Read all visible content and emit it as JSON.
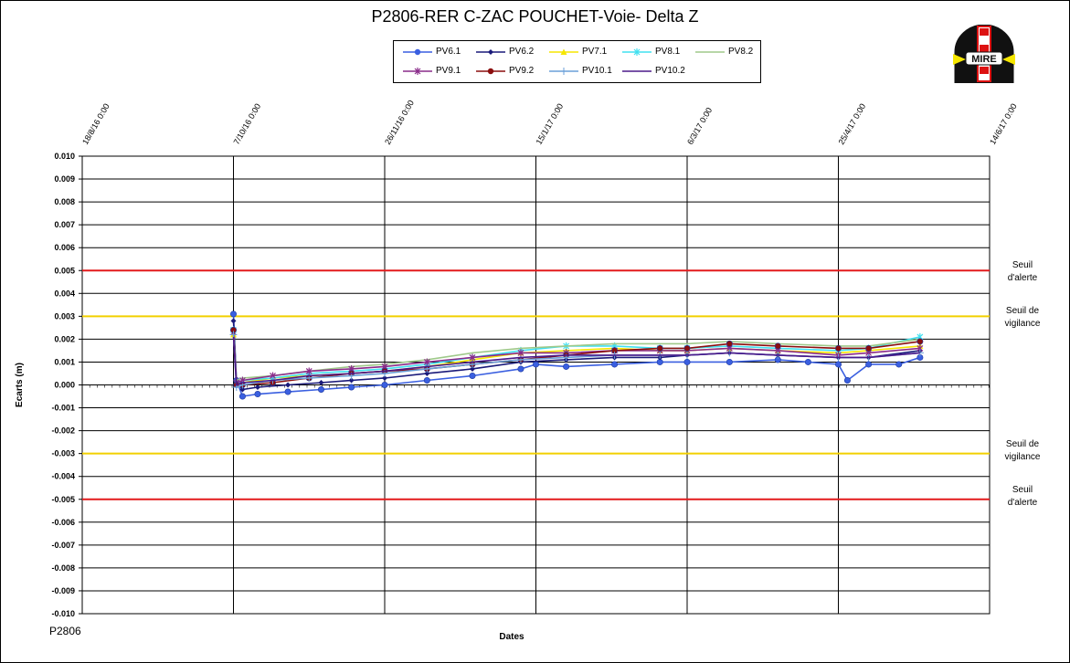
{
  "page": {
    "title": "P2806-RER  C-ZAC  POUCHET-Voie-  Delta Z",
    "footer_code": "P2806",
    "logo_text": "MIRE"
  },
  "thresholds": [
    {
      "value": 0.005,
      "color": "#e31a1c",
      "label_line1": "Seuil",
      "label_line2": "d'alerte"
    },
    {
      "value": 0.003,
      "color": "#f2d000",
      "label_line1": "Seuil de",
      "label_line2": "vigilance"
    },
    {
      "value": -0.003,
      "color": "#f2d000",
      "label_line1": "Seuil de",
      "label_line2": "vigilance"
    },
    {
      "value": -0.005,
      "color": "#e31a1c",
      "label_line1": "Seuil",
      "label_line2": "d'alerte"
    }
  ],
  "chart_data": {
    "type": "line",
    "title": "P2806-RER  C-ZAC  POUCHET-Voie-  Delta Z",
    "xlabel": "Dates",
    "ylabel": "Ecarts (m)",
    "ylim": [
      -0.01,
      0.01
    ],
    "y_ticks": [
      "0.010",
      "0.009",
      "0.008",
      "0.007",
      "0.006",
      "0.005",
      "0.004",
      "0.003",
      "0.002",
      "0.001",
      "0.000",
      "-0.001",
      "-0.002",
      "-0.003",
      "-0.004",
      "-0.005",
      "-0.006",
      "-0.007",
      "-0.008",
      "-0.009",
      "-0.010"
    ],
    "x_ticks": [
      "18/8/16 0:00",
      "7/10/16 0:00",
      "26/11/16 0:00",
      "15/1/17 0:00",
      "6/3/17 0:00",
      "25/4/17 0:00",
      "14/6/17 0:00"
    ],
    "x_range": [
      "2016-08-18",
      "2017-06-14"
    ],
    "grid": true,
    "legend": "top-center",
    "series": [
      {
        "name": "PV6.1",
        "color": "#3a5fe0",
        "marker": "circle",
        "x": [
          "2016-10-07",
          "2016-10-08",
          "2016-10-10",
          "2016-10-15",
          "2016-10-25",
          "2016-11-05",
          "2016-11-15",
          "2016-11-26",
          "2016-12-10",
          "2016-12-25",
          "2017-01-10",
          "2017-01-15",
          "2017-01-25",
          "2017-02-10",
          "2017-02-25",
          "2017-03-06",
          "2017-03-20",
          "2017-04-05",
          "2017-04-15",
          "2017-04-25",
          "2017-04-28",
          "2017-05-05",
          "2017-05-15",
          "2017-05-22"
        ],
        "y": [
          0.0031,
          0.0002,
          -0.0005,
          -0.0004,
          -0.0003,
          -0.0002,
          -0.0001,
          0.0,
          0.0002,
          0.0004,
          0.0007,
          0.0009,
          0.0008,
          0.0009,
          0.001,
          0.001,
          0.001,
          0.0011,
          0.001,
          0.0009,
          0.0002,
          0.0009,
          0.0009,
          0.0012
        ]
      },
      {
        "name": "PV6.2",
        "color": "#1a1a7a",
        "marker": "diamond",
        "x": [
          "2016-10-07",
          "2016-10-08",
          "2016-10-10",
          "2016-10-15",
          "2016-10-25",
          "2016-11-05",
          "2016-11-15",
          "2016-11-26",
          "2016-12-10",
          "2016-12-25",
          "2017-01-10",
          "2017-01-25",
          "2017-02-10",
          "2017-02-25",
          "2017-03-06",
          "2017-03-20",
          "2017-04-05",
          "2017-04-25",
          "2017-05-05",
          "2017-05-22"
        ],
        "y": [
          0.0028,
          0.0001,
          -0.0002,
          -0.0001,
          0.0,
          0.0001,
          0.0002,
          0.0003,
          0.0005,
          0.0007,
          0.001,
          0.0011,
          0.0012,
          0.0012,
          0.0013,
          0.0014,
          0.0013,
          0.0012,
          0.0012,
          0.0015
        ]
      },
      {
        "name": "PV7.1",
        "color": "#f5e600",
        "marker": "triangle",
        "x": [
          "2016-10-07",
          "2016-10-08",
          "2016-10-10",
          "2016-10-20",
          "2016-11-01",
          "2016-11-15",
          "2016-11-26",
          "2016-12-10",
          "2016-12-25",
          "2017-01-10",
          "2017-01-25",
          "2017-02-10",
          "2017-02-25",
          "2017-03-06",
          "2017-03-20",
          "2017-04-05",
          "2017-04-25",
          "2017-05-05",
          "2017-05-22"
        ],
        "y": [
          0.0022,
          0.0,
          0.0001,
          0.0003,
          0.0004,
          0.0005,
          0.0006,
          0.0008,
          0.0011,
          0.0014,
          0.0015,
          0.0016,
          0.0015,
          0.0015,
          0.0016,
          0.0015,
          0.0014,
          0.0015,
          0.0017
        ]
      },
      {
        "name": "PV8.1",
        "color": "#40e0f0",
        "marker": "star",
        "x": [
          "2016-10-07",
          "2016-10-08",
          "2016-10-10",
          "2016-10-20",
          "2016-11-01",
          "2016-11-15",
          "2016-11-26",
          "2016-12-10",
          "2016-12-25",
          "2017-01-10",
          "2017-01-25",
          "2017-02-10",
          "2017-02-25",
          "2017-03-06",
          "2017-03-20",
          "2017-04-05",
          "2017-04-25",
          "2017-05-05",
          "2017-05-22"
        ],
        "y": [
          0.0024,
          0.0001,
          0.0002,
          0.0003,
          0.0005,
          0.0006,
          0.0007,
          0.0009,
          0.0012,
          0.0015,
          0.0017,
          0.0017,
          0.0016,
          0.0016,
          0.0017,
          0.0016,
          0.0015,
          0.0016,
          0.0021
        ]
      },
      {
        "name": "PV8.2",
        "color": "#9fc98a",
        "marker": "none",
        "x": [
          "2016-10-07",
          "2016-10-08",
          "2016-10-10",
          "2016-10-20",
          "2016-11-01",
          "2016-11-15",
          "2016-11-26",
          "2016-12-10",
          "2016-12-25",
          "2017-01-10",
          "2017-01-25",
          "2017-02-10",
          "2017-02-25",
          "2017-03-06",
          "2017-03-20",
          "2017-04-05",
          "2017-04-25",
          "2017-05-05",
          "2017-05-22"
        ],
        "y": [
          0.0025,
          0.0002,
          0.0003,
          0.0004,
          0.0006,
          0.0008,
          0.0009,
          0.0011,
          0.0014,
          0.0016,
          0.0017,
          0.0018,
          0.0018,
          0.0018,
          0.0019,
          0.0018,
          0.0017,
          0.0017,
          0.002
        ]
      },
      {
        "name": "PV9.1",
        "color": "#8a2b8a",
        "marker": "star",
        "x": [
          "2016-10-07",
          "2016-10-08",
          "2016-10-10",
          "2016-10-20",
          "2016-11-01",
          "2016-11-15",
          "2016-11-26",
          "2016-12-10",
          "2016-12-25",
          "2017-01-10",
          "2017-01-25",
          "2017-02-10",
          "2017-02-25",
          "2017-03-06",
          "2017-03-20",
          "2017-04-05",
          "2017-04-25",
          "2017-05-05",
          "2017-05-22"
        ],
        "y": [
          0.0023,
          0.0001,
          0.0002,
          0.0004,
          0.0006,
          0.0007,
          0.0008,
          0.001,
          0.0012,
          0.0014,
          0.0014,
          0.0015,
          0.0015,
          0.0015,
          0.0016,
          0.0015,
          0.0013,
          0.0014,
          0.0016
        ]
      },
      {
        "name": "PV9.2",
        "color": "#8b0e0e",
        "marker": "circle",
        "x": [
          "2016-10-07",
          "2016-10-08",
          "2016-10-10",
          "2016-10-20",
          "2016-11-01",
          "2016-11-15",
          "2016-11-26",
          "2016-12-10",
          "2016-12-25",
          "2017-01-10",
          "2017-01-25",
          "2017-02-10",
          "2017-02-25",
          "2017-03-06",
          "2017-03-20",
          "2017-04-05",
          "2017-04-25",
          "2017-05-05",
          "2017-05-22"
        ],
        "y": [
          0.0024,
          0.0,
          0.0,
          0.0001,
          0.0003,
          0.0005,
          0.0006,
          0.0007,
          0.0009,
          0.0011,
          0.0013,
          0.0015,
          0.0016,
          0.0016,
          0.0018,
          0.0017,
          0.0016,
          0.0016,
          0.0019
        ]
      },
      {
        "name": "PV10.1",
        "color": "#6a9fd8",
        "marker": "plus",
        "x": [
          "2016-10-07",
          "2016-10-08",
          "2016-10-10",
          "2016-10-20",
          "2016-11-01",
          "2016-11-15",
          "2016-11-26",
          "2016-12-10",
          "2016-12-25",
          "2017-01-10",
          "2017-01-25",
          "2017-02-10",
          "2017-02-25",
          "2017-03-06",
          "2017-03-20",
          "2017-04-05",
          "2017-04-25",
          "2017-05-05",
          "2017-05-22"
        ],
        "y": [
          0.0022,
          -0.0001,
          0.0,
          0.0002,
          0.0003,
          0.0004,
          0.0005,
          0.0007,
          0.0009,
          0.0011,
          0.0012,
          0.0013,
          0.0013,
          0.0013,
          0.0014,
          0.0013,
          0.0012,
          0.0012,
          0.0014
        ]
      },
      {
        "name": "PV10.2",
        "color": "#4b1a8a",
        "marker": "none",
        "x": [
          "2016-10-07",
          "2016-10-08",
          "2016-10-10",
          "2016-10-20",
          "2016-11-01",
          "2016-11-15",
          "2016-11-26",
          "2016-12-10",
          "2016-12-25",
          "2017-01-10",
          "2017-01-25",
          "2017-02-10",
          "2017-02-25",
          "2017-03-06",
          "2017-03-20",
          "2017-04-05",
          "2017-04-25",
          "2017-05-05",
          "2017-05-22"
        ],
        "y": [
          0.0021,
          0.0,
          0.0001,
          0.0002,
          0.0004,
          0.0005,
          0.0006,
          0.0008,
          0.001,
          0.0012,
          0.0013,
          0.0013,
          0.0013,
          0.0013,
          0.0014,
          0.0013,
          0.0012,
          0.0012,
          0.0014
        ]
      }
    ]
  }
}
